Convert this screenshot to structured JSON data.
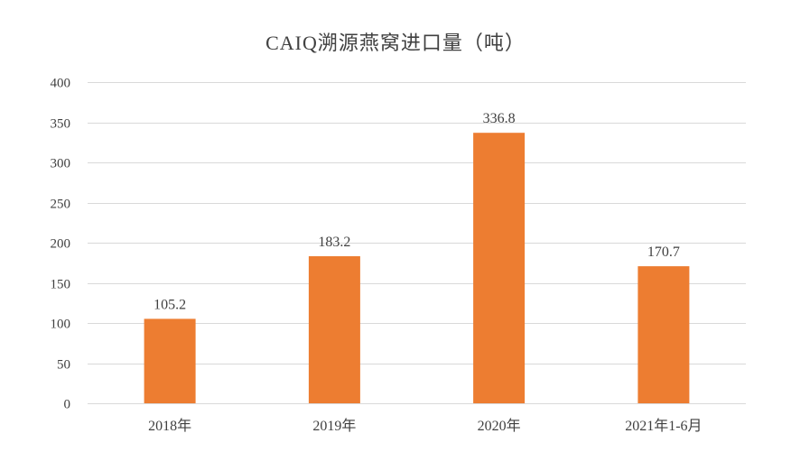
{
  "chart_data": {
    "type": "bar",
    "title": "CAIQ溯源燕窝进口量（吨）",
    "categories": [
      "2018年",
      "2019年",
      "2020年",
      "2021年1-6月"
    ],
    "values": [
      105.2,
      183.2,
      336.8,
      170.7
    ],
    "data_labels": [
      "105.2",
      "183.2",
      "336.8",
      "170.7"
    ],
    "yticks": [
      0,
      50,
      100,
      150,
      200,
      250,
      300,
      350,
      400
    ],
    "ylim": [
      0,
      400
    ],
    "xlabel": "",
    "ylabel": "",
    "grid": true,
    "legend": "none",
    "bar_color": "#ED7D31",
    "grid_color": "#D9D9D9"
  }
}
